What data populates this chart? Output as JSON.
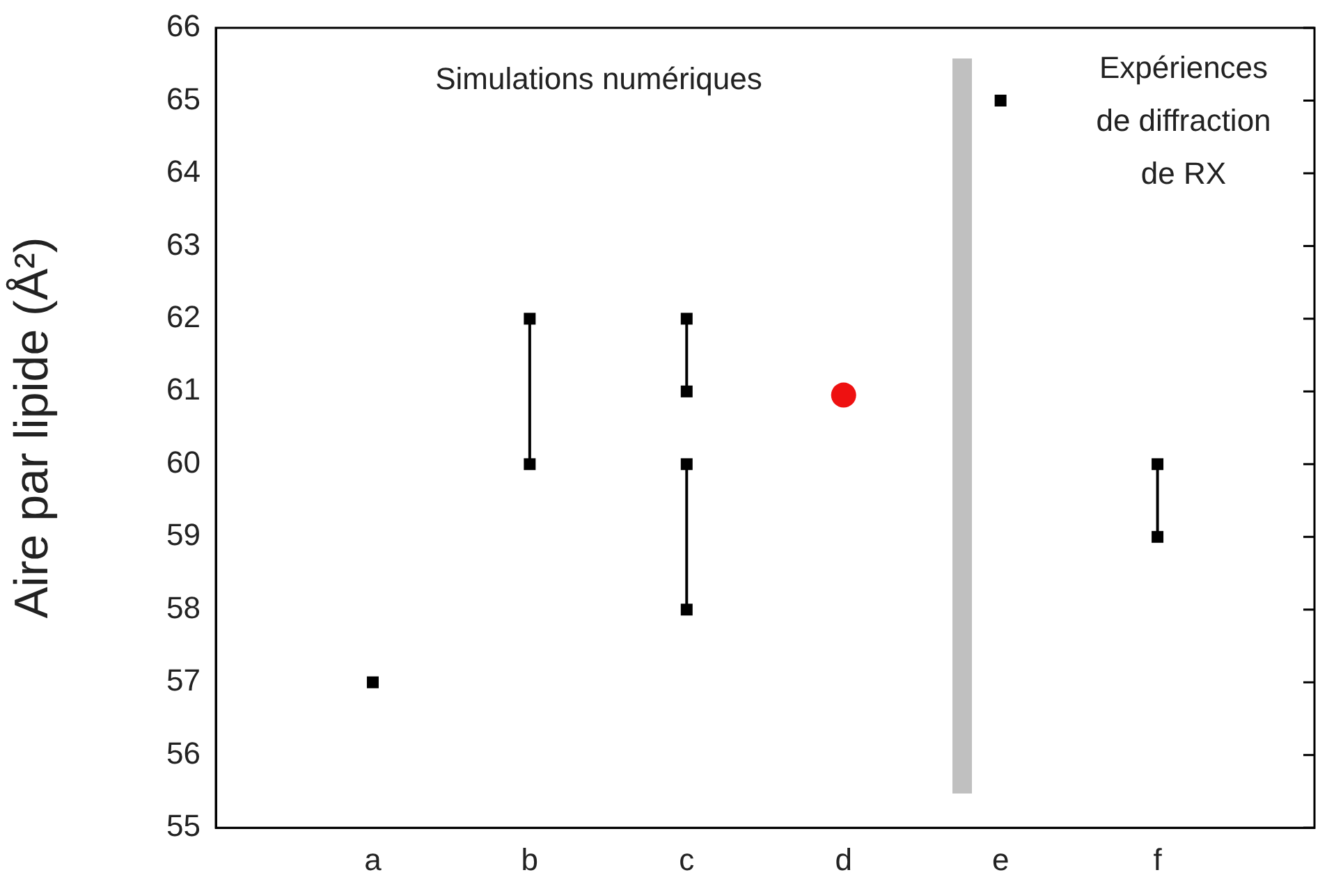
{
  "chart_data": {
    "type": "scatter",
    "ylabel": "Aire par lipide (Å²)",
    "categories": [
      null,
      "a",
      "b",
      "c",
      "d",
      "e",
      "f",
      null
    ],
    "ylim": [
      55,
      66
    ],
    "yticks": [
      55,
      56,
      57,
      58,
      59,
      60,
      61,
      62,
      63,
      64,
      65,
      66
    ],
    "grid": false,
    "legend": false,
    "series": [
      {
        "type": "scatter",
        "color": "#000000",
        "marker": "square",
        "x": [
          "a"
        ],
        "values": [
          57
        ]
      },
      {
        "type": "line",
        "color": "#000000",
        "marker": "square",
        "x": [
          "b",
          "b"
        ],
        "values": [
          60,
          62
        ]
      },
      {
        "type": "line",
        "color": "#000000",
        "marker": "square",
        "x": [
          "c",
          "c"
        ],
        "values": [
          61,
          62
        ]
      },
      {
        "type": "line",
        "color": "#000000",
        "marker": "square",
        "x": [
          "c",
          "c"
        ],
        "values": [
          58,
          60
        ]
      },
      {
        "type": "scatter",
        "color": "#ee1111",
        "marker": "circle",
        "x": [
          "d"
        ],
        "values": [
          60.95
        ]
      },
      {
        "type": "scatter",
        "color": "#000000",
        "marker": "square",
        "x": [
          "e"
        ],
        "values": [
          65
        ]
      },
      {
        "type": "line",
        "color": "#000000",
        "marker": "square",
        "x": [
          "f",
          "f"
        ],
        "values": [
          59,
          60
        ]
      }
    ],
    "annotations": [
      "Simulations numériques",
      "Expériences\nde diffraction\nde RX"
    ]
  }
}
